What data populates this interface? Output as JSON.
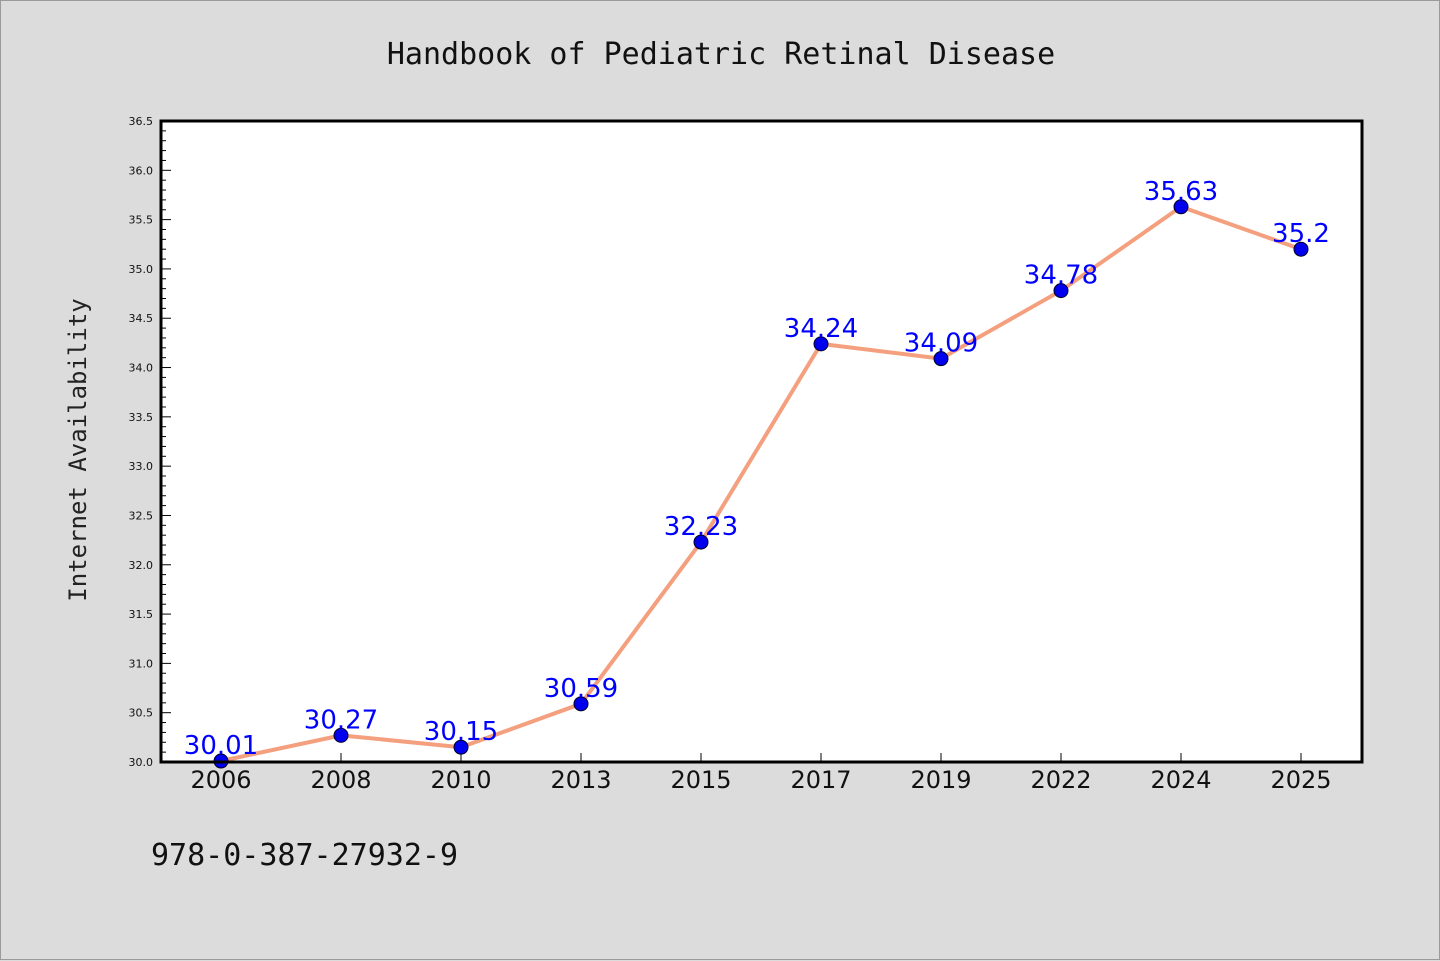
{
  "chart_data": {
    "type": "line",
    "title": "Handbook of Pediatric Retinal Disease",
    "xlabel": "",
    "ylabel": "Internet Availability",
    "categories": [
      "2006",
      "2008",
      "2010",
      "2013",
      "2015",
      "2017",
      "2019",
      "2022",
      "2024",
      "2025"
    ],
    "series": [
      {
        "values": [
          30.01,
          30.27,
          30.15,
          30.59,
          32.23,
          34.24,
          34.09,
          34.78,
          35.63,
          35.2
        ],
        "data_labels": [
          "30.01",
          "30.27",
          "30.15",
          "30.59",
          "32.23",
          "34.24",
          "34.09",
          "34.78",
          "35.63",
          "35.2"
        ]
      }
    ],
    "ylim": [
      30.0,
      36.5
    ],
    "yticks": [
      "30.0",
      "30.5",
      "31.0",
      "31.5",
      "32.0",
      "32.5",
      "33.0",
      "33.5",
      "34.0",
      "34.5",
      "35.0",
      "35.5",
      "36.0",
      "36.5"
    ],
    "grid": false,
    "colors": {
      "line": "#f4a07e",
      "marker": "#0000ee",
      "data_label": "#0000ff",
      "plot_background": "#ffffff",
      "figure_background": "#dcdcdc"
    }
  },
  "footer": {
    "isbn": "978-0-387-27932-9"
  }
}
